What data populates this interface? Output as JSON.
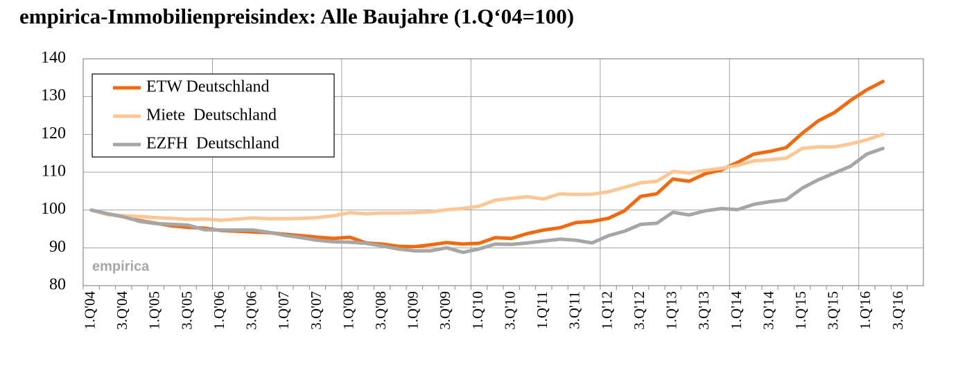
{
  "chart_data": {
    "type": "line",
    "title": "empirica-Immobilienpreisindex: Alle Baujahre (1.Q‘04=100)",
    "annotation": "empirica",
    "categories": [
      "1.Q'04",
      null,
      "3.Q'04",
      null,
      "1.Q'05",
      null,
      "3.Q'05",
      null,
      "1.Q'06",
      null,
      "3.Q'06",
      null,
      "1.Q'07",
      null,
      "3.Q'07",
      null,
      "1.Q'08",
      null,
      "3.Q'08",
      null,
      "1.Q'09",
      null,
      "3.Q'09",
      null,
      "1.Q'10",
      null,
      "3.Q'10",
      null,
      "1.Q'11",
      null,
      "3.Q'11",
      null,
      "1.Q'12",
      null,
      "3.Q'12",
      null,
      "1.Q'13",
      null,
      "3.Q'13",
      null,
      "1.Q'14",
      null,
      "3.Q'14",
      null,
      "1.Q'15",
      null,
      "3.Q'15",
      null,
      "1.Q'16",
      null,
      "3.Q'16",
      null
    ],
    "series": [
      {
        "name": "ETW Deutschland",
        "color": "#f26a10",
        "values": [
          100,
          99,
          98.2,
          97.2,
          96.5,
          95.8,
          95.4,
          95.2,
          94.6,
          94.4,
          94.2,
          94,
          93.6,
          93.2,
          92.8,
          92.5,
          92.8,
          91.3,
          91,
          90.4,
          90.3,
          90.8,
          91.4,
          91,
          91.2,
          92.7,
          92.5,
          93.8,
          94.7,
          95.3,
          96.7,
          97,
          97.8,
          99.8,
          103.6,
          104.3,
          108.2,
          107.6,
          109.6,
          110.6,
          112.6,
          114.8,
          115.5,
          116.5,
          120.3,
          123.6,
          125.8,
          129,
          131.8,
          134,
          null,
          null
        ]
      },
      {
        "name": "Miete  Deutschland",
        "color": "#fcc795",
        "values": [
          100,
          98.8,
          98.5,
          98.3,
          98,
          97.8,
          97.5,
          97.6,
          97.3,
          97.6,
          97.9,
          97.7,
          97.7,
          97.8,
          98,
          98.5,
          99.3,
          99,
          99.2,
          99.2,
          99.3,
          99.5,
          100.1,
          100.4,
          101,
          102.6,
          103.1,
          103.5,
          102.9,
          104.3,
          104.1,
          104.2,
          104.8,
          106,
          107.2,
          107.6,
          110.2,
          109.8,
          110.5,
          111,
          111.8,
          113,
          113.3,
          113.7,
          116.3,
          116.7,
          116.7,
          117.5,
          118.6,
          120,
          null,
          null
        ]
      },
      {
        "name": "EZFH  Deutschland",
        "color": "#a6a6a6",
        "values": [
          100,
          99,
          98.2,
          97,
          96.4,
          96.2,
          96,
          94.8,
          94.7,
          94.7,
          94.7,
          94.1,
          93.3,
          92.7,
          92,
          91.6,
          91.5,
          91.2,
          90.5,
          89.7,
          89.2,
          89.2,
          90,
          88.8,
          89.7,
          91,
          90.9,
          91.3,
          91.8,
          92.3,
          92,
          91.3,
          93.2,
          94.4,
          96.2,
          96.5,
          99.4,
          98.7,
          99.8,
          100.4,
          100.1,
          101.5,
          102.2,
          102.7,
          105.8,
          108,
          109.8,
          111.6,
          114.8,
          116.3,
          null,
          null
        ]
      }
    ],
    "ylim": [
      80,
      140
    ],
    "yticks": [
      80,
      90,
      100,
      110,
      120,
      130,
      140
    ],
    "grid": true,
    "legend": "upper left"
  }
}
